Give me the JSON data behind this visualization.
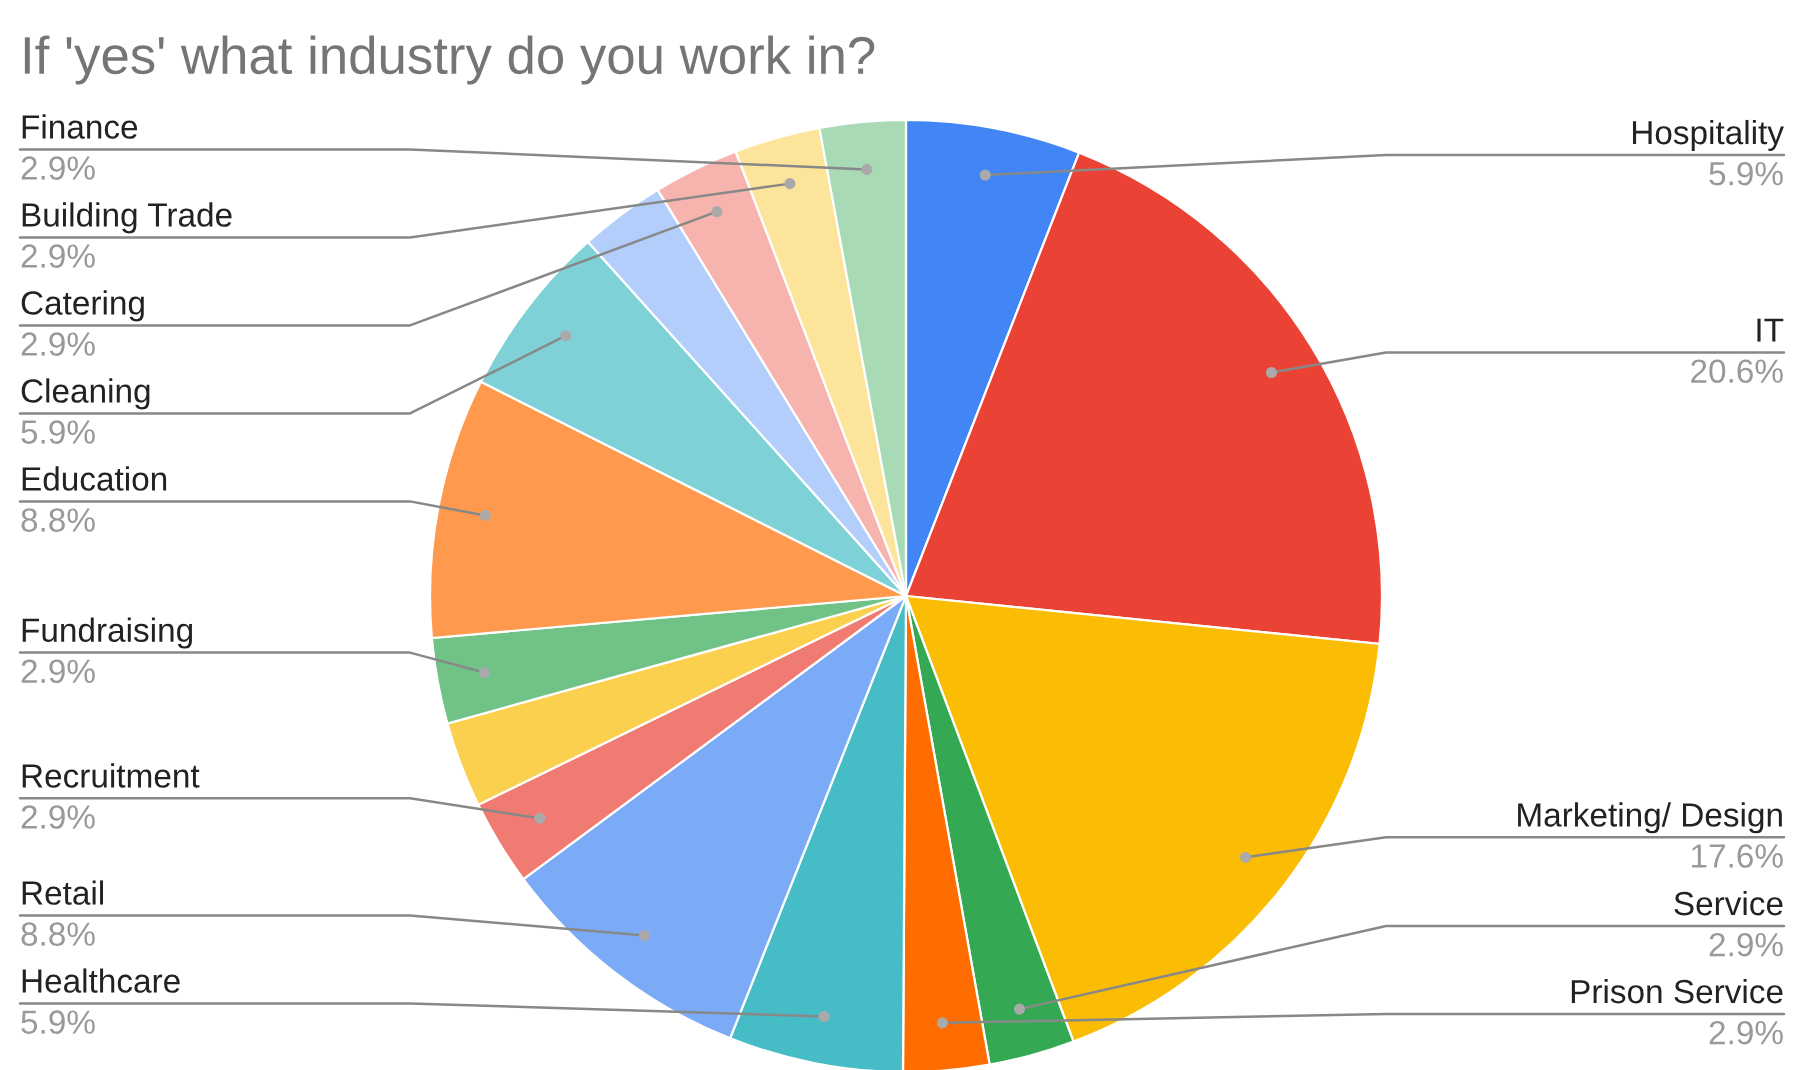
{
  "chart_data": {
    "type": "pie",
    "title": "If 'yes' what industry do you work in?",
    "categories": [
      "Hospitality",
      "IT",
      "Marketing/ Design",
      "Service",
      "Prison Service",
      "Healthcare",
      "Retail",
      "Recruitment",
      null,
      "Fundraising",
      "Education",
      "Cleaning",
      null,
      "Catering",
      "Building Trade",
      "Finance"
    ],
    "values": [
      5.9,
      20.6,
      17.6,
      2.9,
      2.9,
      5.9,
      8.8,
      2.9,
      2.9,
      2.9,
      8.8,
      5.9,
      2.9,
      2.9,
      2.9,
      2.9
    ],
    "value_labels": [
      "5.9%",
      "20.6%",
      "17.6%",
      "2.9%",
      "2.9%",
      "5.9%",
      "8.8%",
      "2.9%",
      null,
      "2.9%",
      "8.8%",
      "5.9%",
      null,
      "2.9%",
      "2.9%",
      "2.9%"
    ],
    "colors": [
      "#4285f4",
      "#ea4335",
      "#fbbc04",
      "#34a853",
      "#ff6d01",
      "#46bdc6",
      "#7baaf7",
      "#f07b72",
      "#fcd04f",
      "#71c287",
      "#ff994d",
      "#7ed1d7",
      "#b3cefb",
      "#f7b4ae",
      "#fde49b",
      "#a8dab5"
    ],
    "legend": false
  }
}
